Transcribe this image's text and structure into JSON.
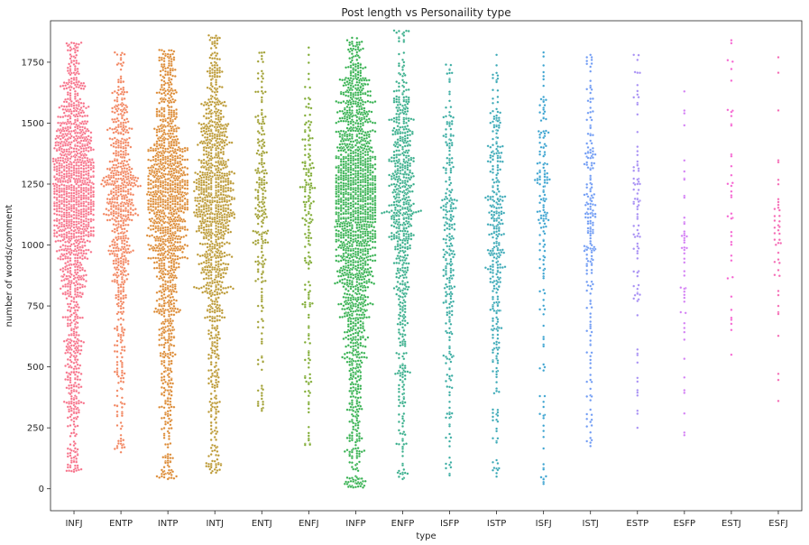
{
  "chart_data": {
    "type": "scatter",
    "subtype": "swarm",
    "title": "Post length vs Personaility type",
    "xlabel": "type",
    "ylabel": "number of words/comment",
    "ylim": [
      -90,
      1920
    ],
    "yticks": [
      0,
      250,
      500,
      750,
      1000,
      1250,
      1500,
      1750
    ],
    "grid": false,
    "categories": [
      "INFJ",
      "ENTP",
      "INTP",
      "INTJ",
      "ENTJ",
      "ENFJ",
      "INFP",
      "ENFP",
      "ISFP",
      "ISTP",
      "ISFJ",
      "ISTJ",
      "ESTP",
      "ESFP",
      "ESTJ",
      "ESFJ"
    ],
    "colors": [
      "#f77189",
      "#f2845e",
      "#dc8932",
      "#bb9832",
      "#a09f31",
      "#7eaa31",
      "#33b04e",
      "#36ad8a",
      "#37aba1",
      "#39a8b6",
      "#3ba3d0",
      "#6f9bf4",
      "#a78ff4",
      "#d37ff4",
      "#f565d1",
      "#f569b4"
    ],
    "series": [
      {
        "name": "INFJ",
        "count": 1470,
        "min": 70,
        "max": 1830,
        "median": 1330
      },
      {
        "name": "ENTP",
        "count": 685,
        "min": 150,
        "max": 1790,
        "median": 1300
      },
      {
        "name": "INTP",
        "count": 1304,
        "min": 40,
        "max": 1800,
        "median": 1290
      },
      {
        "name": "INTJ",
        "count": 1091,
        "min": 65,
        "max": 1860,
        "median": 1300
      },
      {
        "name": "ENTJ",
        "count": 231,
        "min": 320,
        "max": 1790,
        "median": 1320
      },
      {
        "name": "ENFJ",
        "count": 190,
        "min": 180,
        "max": 1810,
        "median": 1350
      },
      {
        "name": "INFP",
        "count": 1832,
        "min": 5,
        "max": 1850,
        "median": 1280
      },
      {
        "name": "ENFP",
        "count": 675,
        "min": 40,
        "max": 1880,
        "median": 1300
      },
      {
        "name": "ISFP",
        "count": 271,
        "min": 55,
        "max": 1740,
        "median": 1200
      },
      {
        "name": "ISTP",
        "count": 337,
        "min": 50,
        "max": 1780,
        "median": 1200
      },
      {
        "name": "ISFJ",
        "count": 166,
        "min": 20,
        "max": 1790,
        "median": 1320
      },
      {
        "name": "ISTJ",
        "count": 205,
        "min": 175,
        "max": 1780,
        "median": 1280
      },
      {
        "name": "ESTP",
        "count": 89,
        "min": 250,
        "max": 1780,
        "median": 1200
      },
      {
        "name": "ESFP",
        "count": 48,
        "min": 220,
        "max": 1630,
        "median": 1050
      },
      {
        "name": "ESTJ",
        "count": 39,
        "min": 550,
        "max": 1840,
        "median": 1300
      },
      {
        "name": "ESFJ",
        "count": 42,
        "min": 360,
        "max": 1770,
        "median": 1200
      }
    ]
  }
}
